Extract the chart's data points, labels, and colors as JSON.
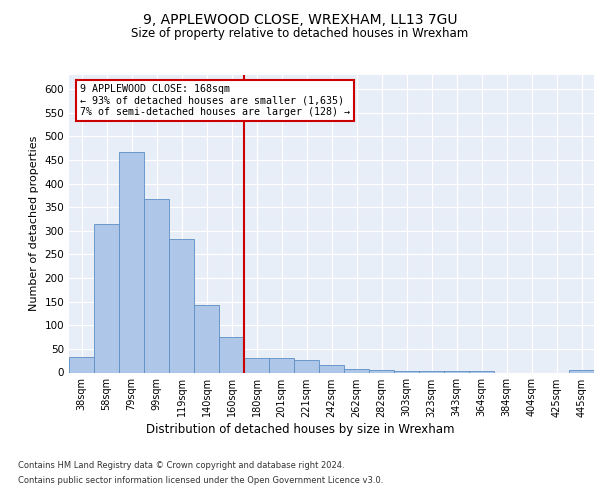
{
  "title1": "9, APPLEWOOD CLOSE, WREXHAM, LL13 7GU",
  "title2": "Size of property relative to detached houses in Wrexham",
  "xlabel": "Distribution of detached houses by size in Wrexham",
  "ylabel": "Number of detached properties",
  "categories": [
    "38sqm",
    "58sqm",
    "79sqm",
    "99sqm",
    "119sqm",
    "140sqm",
    "160sqm",
    "180sqm",
    "201sqm",
    "221sqm",
    "242sqm",
    "262sqm",
    "282sqm",
    "303sqm",
    "323sqm",
    "343sqm",
    "364sqm",
    "384sqm",
    "404sqm",
    "425sqm",
    "445sqm"
  ],
  "values": [
    32,
    315,
    468,
    368,
    283,
    142,
    76,
    31,
    30,
    26,
    15,
    8,
    5,
    4,
    4,
    4,
    4,
    0,
    0,
    0,
    5
  ],
  "bar_color": "#aec6e8",
  "bar_edge_color": "#5b8ec4",
  "vline_x": 6.5,
  "vline_color": "#cc0000",
  "annotation_text": "9 APPLEWOOD CLOSE: 168sqm\n← 93% of detached houses are smaller (1,635)\n7% of semi-detached houses are larger (128) →",
  "annotation_box_color": "#ffffff",
  "annotation_box_edge": "#cc0000",
  "ylim": [
    0,
    630
  ],
  "yticks": [
    0,
    50,
    100,
    150,
    200,
    250,
    300,
    350,
    400,
    450,
    500,
    550,
    600
  ],
  "footer1": "Contains HM Land Registry data © Crown copyright and database right 2024.",
  "footer2": "Contains public sector information licensed under the Open Government Licence v3.0.",
  "plot_bg_color": "#e8eef7"
}
